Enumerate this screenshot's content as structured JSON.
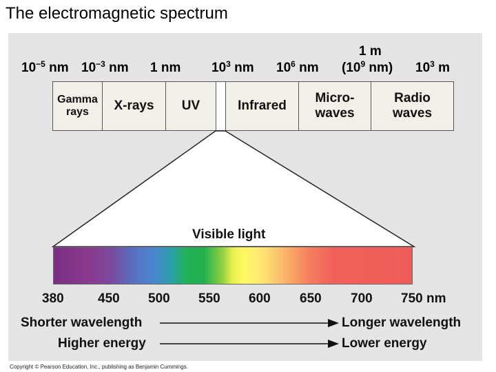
{
  "title": "The electromagnetic spectrum",
  "wavelength_scale": {
    "labels": [
      {
        "text": "10",
        "exp": "−5",
        "unit": " nm"
      },
      {
        "text": "10",
        "exp": "−3",
        "unit": " nm"
      },
      {
        "text": "1 nm",
        "exp": "",
        "unit": ""
      },
      {
        "text": "10",
        "exp": "3",
        "unit": " nm"
      },
      {
        "text": "10",
        "exp": "6",
        "unit": " nm"
      },
      {
        "text": "(10",
        "exp": "9",
        "unit": " nm)"
      },
      {
        "text": "10",
        "exp": "3",
        "unit": " m"
      }
    ],
    "one_meter": "1 m"
  },
  "bands": {
    "gamma": "Gamma rays",
    "xrays": "X-rays",
    "uv": "UV",
    "infrared": "Infrared",
    "microwaves": "Micro- waves",
    "radio": "Radio waves"
  },
  "visible": {
    "title": "Visible light",
    "ticks": [
      "380",
      "450",
      "500",
      "550",
      "600",
      "650",
      "700",
      "750 nm"
    ]
  },
  "arrows": {
    "shorter": "Shorter wavelength",
    "longer": "Longer wavelength",
    "higher": "Higher energy",
    "lower": "Lower energy"
  },
  "copyright": "Copyright © Pearson Education, Inc., publishing as Benjamin Cummings."
}
